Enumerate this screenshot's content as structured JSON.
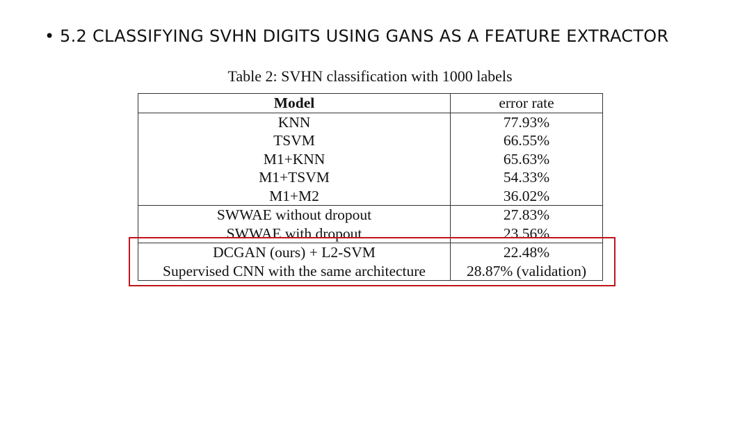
{
  "slide": {
    "bullet": "•",
    "heading": "5.2 CLASSIFYING SVHN DIGITS USING GANS AS A FEATURE EXTRACTOR"
  },
  "table": {
    "caption": "Table 2: SVHN classification with 1000 labels",
    "headers": [
      "Model",
      "error rate"
    ],
    "rows": [
      {
        "model": "KNN",
        "error": "77.93%"
      },
      {
        "model": "TSVM",
        "error": "66.55%"
      },
      {
        "model": "M1+KNN",
        "error": "65.63%"
      },
      {
        "model": "M1+TSVM",
        "error": "54.33%"
      },
      {
        "model": "M1+M2",
        "error": "36.02%"
      },
      {
        "model": "SWWAE without dropout",
        "error": "27.83%"
      },
      {
        "model": "SWWAE with dropout",
        "error": "23.56%"
      },
      {
        "model": "DCGAN (ours) + L2-SVM",
        "error": "22.48%"
      },
      {
        "model": "Supervised CNN with the same architecture",
        "error": "28.87% (validation)"
      }
    ]
  },
  "highlight": {
    "color": "#c0141c"
  }
}
